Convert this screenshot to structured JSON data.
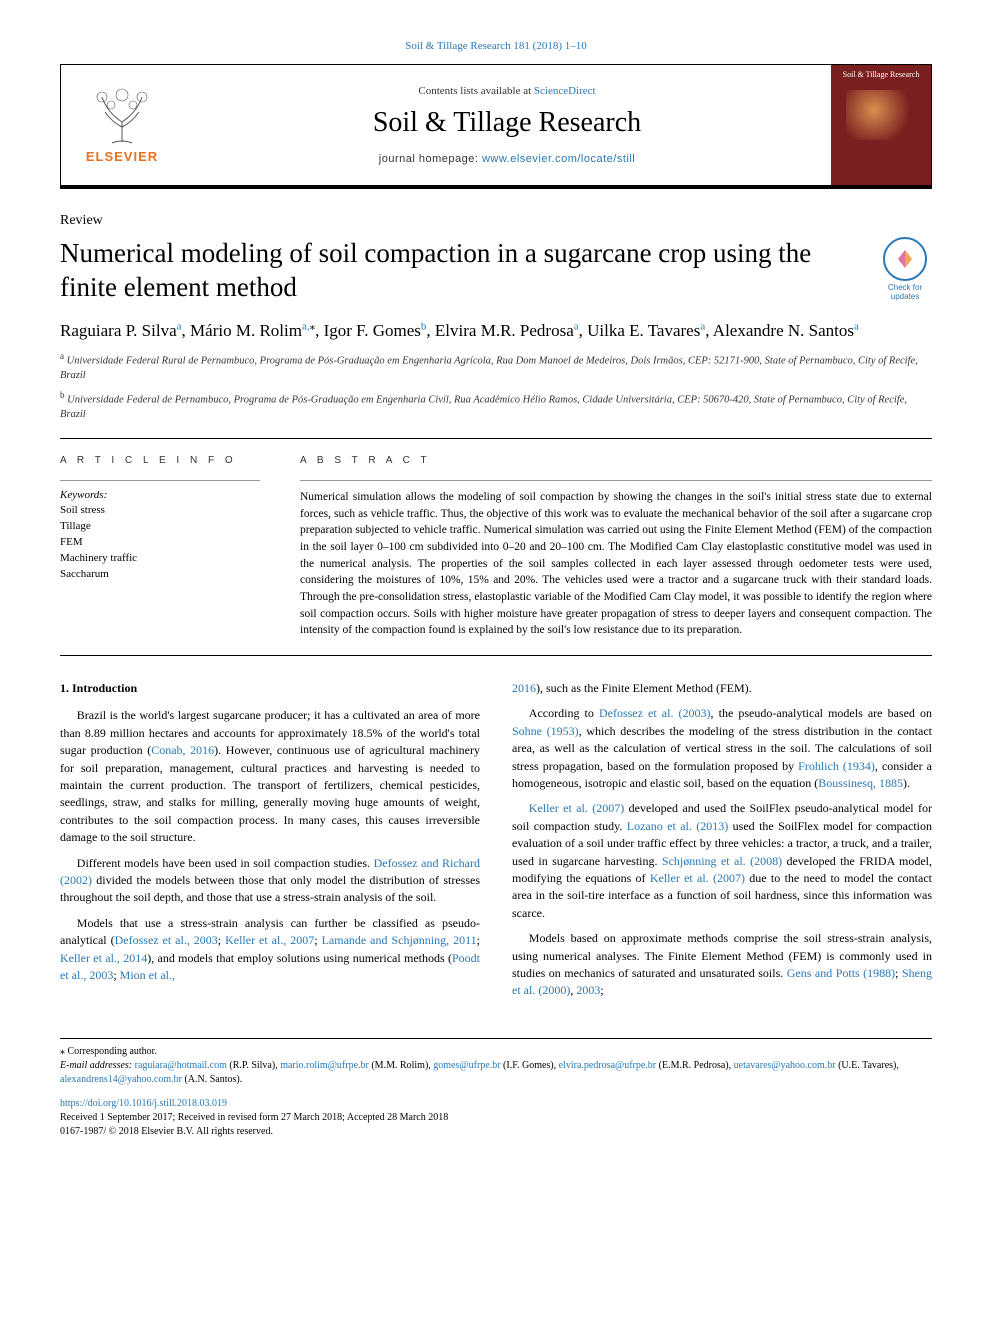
{
  "journal_ref": "Soil & Tillage Research 181 (2018) 1–10",
  "header": {
    "contents_prefix": "Contents lists available at ",
    "contents_link": "ScienceDirect",
    "journal_name": "Soil & Tillage Research",
    "homepage_prefix": "journal homepage: ",
    "homepage_url": "www.elsevier.com/locate/still",
    "elsevier": "ELSEVIER",
    "cover_text": "Soil & Tillage Research"
  },
  "updates_badge": "Check for updates",
  "article_type": "Review",
  "title": "Numerical modeling of soil compaction in a sugarcane crop using the finite element method",
  "authors_html": "Raguiara P. Silva<sup>a</sup>, Mário M. Rolim<sup>a,</sup><sup class='sup-star'>⁎</sup>, Igor F. Gomes<sup>b</sup>, Elvira M.R. Pedrosa<sup>a</sup>, Uilka E. Tavares<sup>a</sup>, Alexandre N. Santos<sup>a</sup>",
  "affiliations": {
    "a": "Universidade Federal Rural de Pernambuco, Programa de Pós-Graduação em Engenharia Agrícola, Rua Dom Manoel de Medeiros, Dois Irmãos, CEP: 52171-900, State of Pernambuco, City of Recife, Brazil",
    "b": "Universidade Federal de Pernambuco, Programa de Pós-Graduação em Engenharia Civil, Rua Acadêmico Hélio Ramos, Cidade Universitária, CEP: 50670-420, State of Pernambuco, City of Recife, Brazil"
  },
  "article_info_label": "A R T I C L E  I N F O",
  "abstract_label": "A B S T R A C T",
  "keywords_heading": "Keywords:",
  "keywords": [
    "Soil stress",
    "Tillage",
    "FEM",
    "Machinery traffic",
    "Saccharum"
  ],
  "abstract": "Numerical simulation allows the modeling of soil compaction by showing the changes in the soil's initial stress state due to external forces, such as vehicle traffic. Thus, the objective of this work was to evaluate the mechanical behavior of the soil after a sugarcane crop preparation subjected to vehicle traffic. Numerical simulation was carried out using the Finite Element Method (FEM) of the compaction in the soil layer 0–100 cm subdivided into 0–20 and 20–100 cm. The Modified Cam Clay elastoplastic constitutive model was used in the numerical analysis. The properties of the soil samples collected in each layer assessed through oedometer tests were used, considering the moistures of 10%, 15% and 20%. The vehicles used were a tractor and a sugarcane truck with their standard loads. Through the pre-consolidation stress, elastoplastic variable of the Modified Cam Clay model, it was possible to identify the region where soil compaction occurs. Soils with higher moisture have greater propagation of stress to deeper layers and consequent compaction. The intensity of the compaction found is explained by the soil's low resistance due to its preparation.",
  "intro_heading": "1. Introduction",
  "body": {
    "l1": "Brazil is the world's largest sugarcane producer; it has a cultivated an area of more than 8.89 million hectares and accounts for approximately 18.5% of the world's total sugar production (",
    "l1_ref": "Conab, 2016",
    "l1b": "). However, continuous use of agricultural machinery for soil preparation, management, cultural practices and harvesting is needed to maintain the current production. The transport of fertilizers, chemical pesticides, seedlings, straw, and stalks for milling, generally moving huge amounts of weight, contributes to the soil compaction process. In many cases, this causes irreversible damage to the soil structure.",
    "l2": "Different models have been used in soil compaction studies. ",
    "l2_ref": "Defossez and Richard (2002)",
    "l2b": " divided the models between those that only model the distribution of stresses throughout the soil depth, and those that use a stress-strain analysis of the soil.",
    "l3": "Models that use a stress-strain analysis can further be classified as pseudo-analytical (",
    "l3_ref1": "Defossez et al., 2003",
    "l3_s1": "; ",
    "l3_ref2": "Keller et al., 2007",
    "l3_s2": "; ",
    "l3_ref3": "Lamande and Schjønning, 2011",
    "l3_s3": "; ",
    "l3_ref4": "Keller et al., 2014",
    "l3b": "), and models that employ solutions using numerical methods (",
    "l3_ref5": "Poodt et al., 2003",
    "l3_s4": "; ",
    "l3_ref6": "Mion et al.,",
    "r0_ref": "2016",
    "r0": "), such as the Finite Element Method (FEM).",
    "r1": "According to ",
    "r1_ref1": "Defossez et al. (2003)",
    "r1a": ", the pseudo-analytical models are based on ",
    "r1_ref2": "Sohne (1953)",
    "r1b": ", which describes the modeling of the stress distribution in the contact area, as well as the calculation of vertical stress in the soil. The calculations of soil stress propagation, based on the formulation proposed by ",
    "r1_ref3": "Frohlich (1934)",
    "r1c": ", consider a homogeneous, isotropic and elastic soil, based on the equation (",
    "r1_ref4": "Boussinesq, 1885",
    "r1d": ").",
    "r2_ref1": "Keller et al. (2007)",
    "r2a": " developed and used the SoilFlex pseudo-analytical model for soil compaction study. ",
    "r2_ref2": "Lozano et al. (2013)",
    "r2b": " used the SoilFlex model for compaction evaluation of a soil under traffic effect by three vehicles: a tractor, a truck, and a trailer, used in sugarcane harvesting. ",
    "r2_ref3": "Schjønning et al. (2008)",
    "r2c": " developed the FRIDA model, modifying the equations of ",
    "r2_ref4": "Keller et al. (2007)",
    "r2d": " due to the need to model the contact area in the soil-tire interface as a function of soil hardness, since this information was scarce.",
    "r3": "Models based on approximate methods comprise the soil stress-strain analysis, using numerical analyses. The Finite Element Method (FEM) is commonly used in studies on mechanics of saturated and unsaturated soils. ",
    "r3_ref1": "Gens and Potts (1988)",
    "r3a": "; ",
    "r3_ref2": "Sheng et al. (2000)",
    "r3b": ", ",
    "r3_ref3": "2003",
    "r3c": ";"
  },
  "footer": {
    "corr_label": "⁎ Corresponding author.",
    "email_label": "E-mail addresses:",
    "emails": [
      {
        "addr": "raguiara@hotmail.com",
        "who": "(R.P. Silva)"
      },
      {
        "addr": "mario.rolim@ufrpe.br",
        "who": "(M.M. Rolim)"
      },
      {
        "addr": "gomes@ufrpe.br",
        "who": "(I.F. Gomes)"
      },
      {
        "addr": "elvira.pedrosa@ufrpe.br",
        "who": "(E.M.R. Pedrosa)"
      },
      {
        "addr": "uetavares@yahoo.com.br",
        "who": "(U.E. Tavares)"
      },
      {
        "addr": "alexandrens14@yahoo.com.br",
        "who": "(A.N. Santos)."
      }
    ],
    "doi": "https://doi.org/10.1016/j.still.2018.03.019",
    "received": "Received 1 September 2017; Received in revised form 27 March 2018; Accepted 28 March 2018",
    "copyright": "0167-1987/ © 2018 Elsevier B.V. All rights reserved."
  },
  "colors": {
    "link": "#2878b5",
    "elsevier_orange": "#e8721f",
    "cover_bg": "#7a1f1f"
  }
}
